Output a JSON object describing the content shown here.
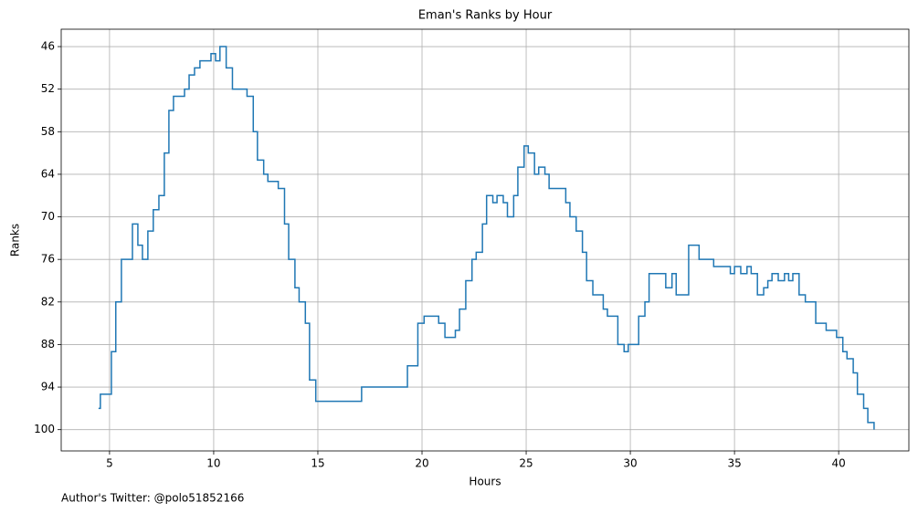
{
  "chart_data": {
    "type": "step",
    "title": "Eman's Ranks by Hour",
    "xlabel": "Hours",
    "ylabel": "Ranks",
    "footnote": "Author's Twitter: @polo51852166",
    "xlim": [
      2.68,
      43.37
    ],
    "xticks": [
      5,
      10,
      15,
      20,
      25,
      30,
      35,
      40
    ],
    "ylim": [
      103,
      43.55
    ],
    "yticks": [
      46,
      52,
      58,
      64,
      70,
      76,
      82,
      88,
      94,
      100
    ],
    "grid": true,
    "series": [
      {
        "name": "Ranks",
        "color": "#1f77b4",
        "x": [
          4.47,
          4.56,
          5.09,
          5.3,
          5.57,
          6.1,
          6.36,
          6.58,
          6.84,
          7.1,
          7.37,
          7.63,
          7.85,
          8.07,
          8.6,
          8.82,
          9.08,
          9.34,
          9.87,
          10.09,
          10.3,
          10.6,
          10.9,
          11.6,
          11.9,
          12.1,
          12.4,
          12.6,
          13.1,
          13.4,
          13.6,
          13.9,
          14.1,
          14.4,
          14.6,
          14.9,
          17.1,
          19.3,
          19.8,
          20.1,
          20.8,
          21.1,
          21.6,
          21.8,
          22.1,
          22.4,
          22.6,
          22.9,
          23.1,
          23.4,
          23.6,
          23.9,
          24.1,
          24.4,
          24.6,
          24.9,
          25.1,
          25.4,
          25.6,
          25.9,
          26.1,
          26.9,
          27.1,
          27.4,
          27.7,
          27.9,
          28.2,
          28.7,
          28.9,
          29.4,
          29.7,
          29.9,
          30.4,
          30.7,
          30.9,
          31.7,
          32.0,
          32.2,
          32.8,
          33.3,
          34.0,
          34.8,
          35.0,
          35.3,
          35.6,
          35.8,
          36.1,
          36.4,
          36.6,
          36.8,
          37.1,
          37.4,
          37.6,
          37.8,
          38.1,
          38.4,
          38.9,
          39.4,
          39.9,
          40.2,
          40.4,
          40.7,
          40.9,
          41.2,
          41.4,
          41.7
        ],
        "values": [
          97,
          95,
          89,
          82,
          76,
          71,
          74,
          76,
          72,
          69,
          67,
          61,
          55,
          53,
          52,
          50,
          49,
          48,
          47,
          48,
          46,
          49,
          52,
          53,
          58,
          62,
          64,
          65,
          66,
          71,
          76,
          80,
          82,
          85,
          93,
          96,
          94,
          91,
          85,
          84,
          85,
          87,
          86,
          83,
          79,
          76,
          75,
          71,
          67,
          68,
          67,
          68,
          70,
          67,
          63,
          60,
          61,
          64,
          63,
          64,
          66,
          68,
          70,
          72,
          75,
          79,
          81,
          83,
          84,
          88,
          89,
          88,
          84,
          82,
          78,
          80,
          78,
          81,
          74,
          76,
          77,
          78,
          77,
          78,
          77,
          78,
          81,
          80,
          79,
          78,
          79,
          78,
          79,
          78,
          81,
          82,
          85,
          86,
          87,
          89,
          90,
          92,
          95,
          97,
          99,
          100
        ]
      }
    ]
  }
}
